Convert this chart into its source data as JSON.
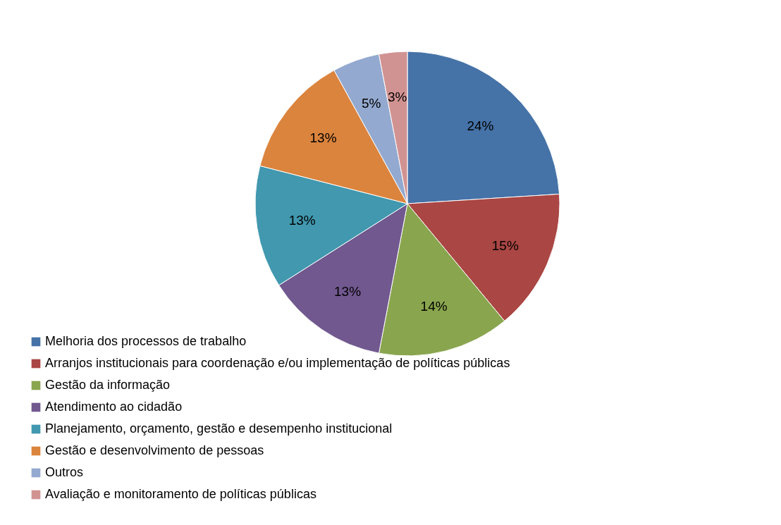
{
  "chart_data": {
    "type": "pie",
    "categories": [
      "Melhoria dos processos de trabalho",
      "Arranjos institucionais para coordenação e/ou implementação de políticas públicas",
      "Gestão da informação",
      "Atendimento ao cidadão",
      "Planejamento, orçamento, gestão e desempenho institucional",
      "Gestão e desenvolvimento de pessoas",
      "Outros",
      "Avaliação e monitoramento de políticas públicas"
    ],
    "values": [
      24,
      15,
      14,
      13,
      13,
      13,
      5,
      3
    ],
    "value_labels": [
      "24%",
      "15%",
      "14%",
      "13%",
      "13%",
      "13%",
      "5%",
      "3%"
    ],
    "colors": [
      "#4572a7",
      "#aa4643",
      "#89a54e",
      "#71588f",
      "#4198af",
      "#db843d",
      "#93a9cf",
      "#d19392"
    ],
    "legend": "bottom left"
  }
}
